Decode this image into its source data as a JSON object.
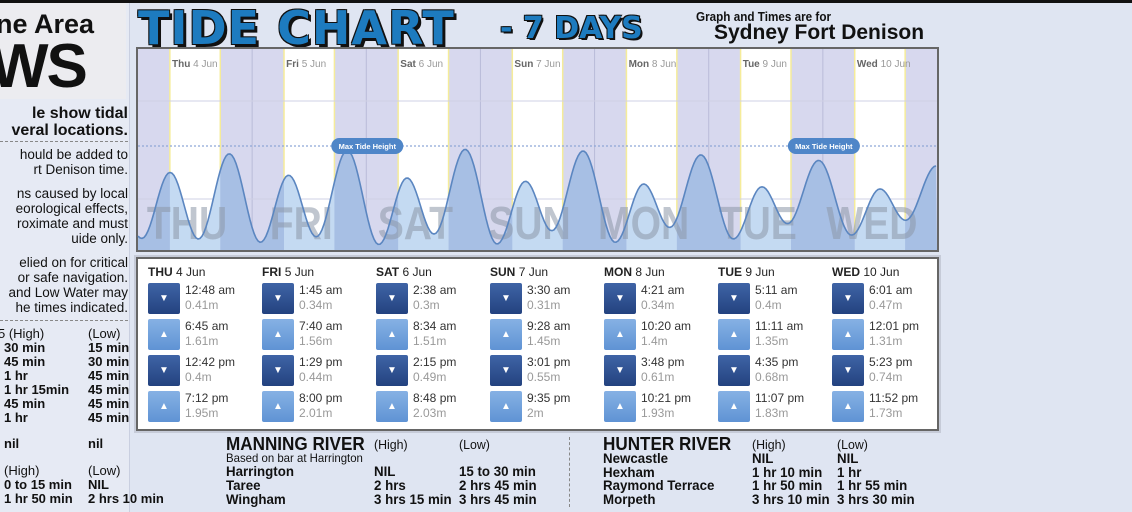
{
  "left_panel": {
    "logo_line1": "ne Area",
    "logo_line2": "WS",
    "heading": [
      "le show tidal",
      "veral locations."
    ],
    "para1": [
      "hould be added to",
      "rt Denison time."
    ],
    "para2": [
      "ns caused by local",
      "eorological effects,",
      "roximate and must",
      "uide only."
    ],
    "para3": [
      "elied on for critical",
      "or safe navigation.",
      "and Low Water may",
      "he times indicated."
    ],
    "table1_header": {
      "high": "5 (High)",
      "low": "(Low)"
    },
    "table1_rows": [
      {
        "high": "30 min",
        "low": "15 min"
      },
      {
        "high": "45 min",
        "low": "30 min"
      },
      {
        "high": "1 hr",
        "low": "45 min"
      },
      {
        "high": "1 hr 15min",
        "low": "45 min"
      },
      {
        "high": "45 min",
        "low": "45 min"
      },
      {
        "high": "1 hr",
        "low": "45 min"
      }
    ],
    "nil_row": {
      "high": "nil",
      "low": "nil"
    },
    "table2_header": {
      "high": "(High)",
      "low": "(Low)"
    },
    "table2_rows": [
      {
        "high": "0 to 15 min",
        "low": "NIL"
      },
      {
        "high": "1 hr 50 min",
        "low": "2 hrs 10 min"
      }
    ]
  },
  "header": {
    "title": "TIDE CHART",
    "subtitle": "- 7 DAYS",
    "graph_note": "Graph and Times are for",
    "location": "Sydney Fort Denison"
  },
  "chart_data": {
    "type": "area",
    "x_unit": "day-of-week/time",
    "y_unit": "m",
    "max_tide_label": "Max Tide Height",
    "days": [
      {
        "short": "Thu",
        "big": "THU",
        "date": "4 Jun"
      },
      {
        "short": "Fri",
        "big": "FRI",
        "date": "5 Jun"
      },
      {
        "short": "Sat",
        "big": "SAT",
        "date": "6 Jun"
      },
      {
        "short": "Sun",
        "big": "SUN",
        "date": "7 Jun"
      },
      {
        "short": "Mon",
        "big": "MON",
        "date": "8 Jun"
      },
      {
        "short": "Tue",
        "big": "TUE",
        "date": "9 Jun"
      },
      {
        "short": "Wed",
        "big": "WED",
        "date": "10 Jun"
      }
    ],
    "colors": {
      "night": "#d7d8ee",
      "day": "#ffffff",
      "fill_day": "#c4daf2",
      "fill_night": "#a7bfe4",
      "line": "#5b86c0",
      "badge": "#4f86c8"
    }
  },
  "tide_table": [
    {
      "day": "THU",
      "date": "4 Jun",
      "events": [
        {
          "type": "low",
          "time": "12:48 am",
          "height": "0.41m"
        },
        {
          "type": "high",
          "time": "6:45 am",
          "height": "1.61m"
        },
        {
          "type": "low",
          "time": "12:42 pm",
          "height": "0.4m"
        },
        {
          "type": "high",
          "time": "7:12 pm",
          "height": "1.95m"
        }
      ]
    },
    {
      "day": "FRI",
      "date": "5 Jun",
      "events": [
        {
          "type": "low",
          "time": "1:45 am",
          "height": "0.34m"
        },
        {
          "type": "high",
          "time": "7:40 am",
          "height": "1.56m"
        },
        {
          "type": "low",
          "time": "1:29 pm",
          "height": "0.44m"
        },
        {
          "type": "high",
          "time": "8:00 pm",
          "height": "2.01m"
        }
      ]
    },
    {
      "day": "SAT",
      "date": "6 Jun",
      "events": [
        {
          "type": "low",
          "time": "2:38 am",
          "height": "0.3m"
        },
        {
          "type": "high",
          "time": "8:34 am",
          "height": "1.51m"
        },
        {
          "type": "low",
          "time": "2:15 pm",
          "height": "0.49m"
        },
        {
          "type": "high",
          "time": "8:48 pm",
          "height": "2.03m"
        }
      ]
    },
    {
      "day": "SUN",
      "date": "7 Jun",
      "events": [
        {
          "type": "low",
          "time": "3:30 am",
          "height": "0.31m"
        },
        {
          "type": "high",
          "time": "9:28 am",
          "height": "1.45m"
        },
        {
          "type": "low",
          "time": "3:01 pm",
          "height": "0.55m"
        },
        {
          "type": "high",
          "time": "9:35 pm",
          "height": "2m"
        }
      ]
    },
    {
      "day": "MON",
      "date": "8 Jun",
      "events": [
        {
          "type": "low",
          "time": "4:21 am",
          "height": "0.34m"
        },
        {
          "type": "high",
          "time": "10:20 am",
          "height": "1.4m"
        },
        {
          "type": "low",
          "time": "3:48 pm",
          "height": "0.61m"
        },
        {
          "type": "high",
          "time": "10:21 pm",
          "height": "1.93m"
        }
      ]
    },
    {
      "day": "TUE",
      "date": "9 Jun",
      "events": [
        {
          "type": "low",
          "time": "5:11 am",
          "height": "0.4m"
        },
        {
          "type": "high",
          "time": "11:11 am",
          "height": "1.35m"
        },
        {
          "type": "low",
          "time": "4:35 pm",
          "height": "0.68m"
        },
        {
          "type": "high",
          "time": "11:07 pm",
          "height": "1.83m"
        }
      ]
    },
    {
      "day": "WED",
      "date": "10 Jun",
      "events": [
        {
          "type": "low",
          "time": "6:01 am",
          "height": "0.47m"
        },
        {
          "type": "high",
          "time": "12:01 pm",
          "height": "1.31m"
        },
        {
          "type": "low",
          "time": "5:23 pm",
          "height": "0.74m"
        },
        {
          "type": "high",
          "time": "11:52 pm",
          "height": "1.73m"
        }
      ]
    }
  ],
  "manning": {
    "title": "MANNING RIVER",
    "high": "(High)",
    "low": "(Low)",
    "note": "Based on bar at Harrington",
    "rows": [
      {
        "place": "Harrington",
        "high": "NIL",
        "low": "15 to 30 min"
      },
      {
        "place": "Taree",
        "high": "2 hrs",
        "low": "2 hrs 45 min"
      },
      {
        "place": "Wingham",
        "high": "3 hrs 15 min",
        "low": "3 hrs 45 min"
      }
    ]
  },
  "hunter": {
    "title": "HUNTER RIVER",
    "high": "(High)",
    "low": "(Low)",
    "rows": [
      {
        "place": "Newcastle",
        "high": "NIL",
        "low": "NIL"
      },
      {
        "place": "Hexham",
        "high": "1 hr 10 min",
        "low": "1 hr"
      },
      {
        "place": "Raymond Terrace",
        "high": "1 hr 50 min",
        "low": "1 hr 55 min"
      },
      {
        "place": "Morpeth",
        "high": "3 hrs 10 min",
        "low": "3 hrs 30 min"
      }
    ]
  }
}
